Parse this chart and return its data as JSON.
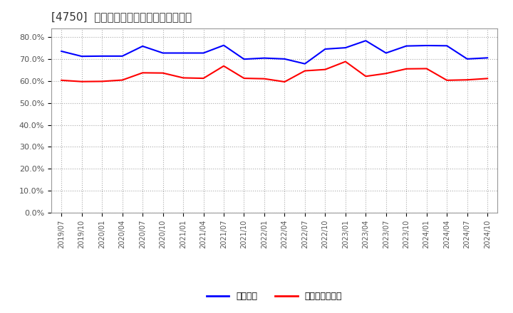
{
  "title": "[4750]  固定比率、固定長期適合率の推移",
  "legend_labels": [
    "固定比率",
    "固定長期適合率"
  ],
  "line_colors": [
    "#0000ff",
    "#ff0000"
  ],
  "background_color": "#ffffff",
  "plot_bg_color": "#ffffff",
  "grid_color": "#aaaaaa",
  "ylim": [
    0.0,
    0.84
  ],
  "yticks": [
    0.0,
    0.1,
    0.2,
    0.3,
    0.4,
    0.5,
    0.6,
    0.7,
    0.8
  ],
  "ytick_labels": [
    "0.0%",
    "10.0%",
    "20.0%",
    "30.0%",
    "40.0%",
    "50.0%",
    "60.0%",
    "70.0%",
    "80.0%"
  ],
  "x_labels": [
    "2019/07",
    "2019/10",
    "2020/01",
    "2020/04",
    "2020/07",
    "2020/10",
    "2021/01",
    "2021/04",
    "2021/07",
    "2021/10",
    "2022/01",
    "2022/04",
    "2022/07",
    "2022/10",
    "2023/01",
    "2023/04",
    "2023/07",
    "2023/10",
    "2024/01",
    "2024/04",
    "2024/07",
    "2024/10"
  ],
  "series1": [
    0.735,
    0.712,
    0.713,
    0.713,
    0.758,
    0.727,
    0.727,
    0.727,
    0.762,
    0.699,
    0.704,
    0.7,
    0.678,
    0.745,
    0.751,
    0.783,
    0.727,
    0.759,
    0.761,
    0.76,
    0.7,
    0.705
  ],
  "series2": [
    0.603,
    0.597,
    0.598,
    0.604,
    0.637,
    0.636,
    0.614,
    0.612,
    0.668,
    0.612,
    0.61,
    0.596,
    0.646,
    0.652,
    0.688,
    0.621,
    0.634,
    0.655,
    0.656,
    0.603,
    0.605,
    0.611
  ]
}
